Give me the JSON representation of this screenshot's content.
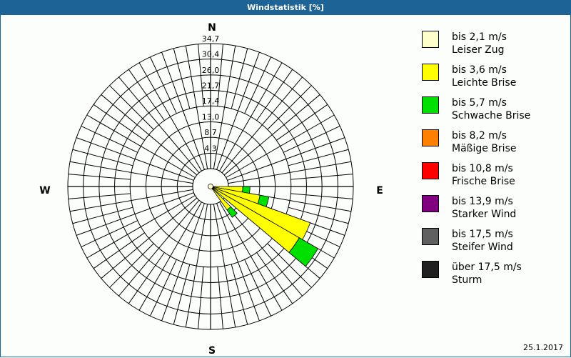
{
  "window": {
    "title": "Windstatistik [%]"
  },
  "footer": {
    "date": "25.1.2017"
  },
  "compass": {
    "north": "N",
    "south": "S",
    "west": "W",
    "east": "E"
  },
  "colors": {
    "titlebar": "#1d6396",
    "grid": "#000000"
  },
  "chart_data": {
    "type": "wind-rose",
    "title": "Windstatistik [%]",
    "unit": "%",
    "radial_ticks": [
      "4,3",
      "8,7",
      "13,0",
      "17,4",
      "21,7",
      "26,0",
      "30,4",
      "34,7"
    ],
    "radial_tick_values": [
      4.3,
      8.7,
      13.0,
      17.4,
      21.7,
      26.0,
      30.4,
      34.7
    ],
    "rmax": 34.7,
    "sector_width_deg": 10,
    "legend": [
      {
        "range": "bis 2,1 m/s",
        "name": "Leiser Zug",
        "color": "#ffffcc"
      },
      {
        "range": "bis 3,6 m/s",
        "name": "Leichte Brise",
        "color": "#ffff00"
      },
      {
        "range": "bis 5,7 m/s",
        "name": "Schwache Brise",
        "color": "#00e000"
      },
      {
        "range": "bis 8,2 m/s",
        "name": "Mäßige Brise",
        "color": "#ff8000"
      },
      {
        "range": "bis 10,8 m/s",
        "name": "Frische Brise",
        "color": "#ff0000"
      },
      {
        "range": "bis 13,9 m/s",
        "name": "Starker Wind",
        "color": "#800080"
      },
      {
        "range": "bis 17,5 m/s",
        "name": "Steifer Wind",
        "color": "#606060"
      },
      {
        "range": "über 17,5 m/s",
        "name": "Sturm",
        "color": "#202020"
      }
    ],
    "sectors": [
      {
        "direction_deg": 95,
        "series": {
          "bis 3,6 m/s": 4.0,
          "bis 5,7 m/s": 2.0
        }
      },
      {
        "direction_deg": 105,
        "series": {
          "bis 3,6 m/s": 9.0,
          "bis 5,7 m/s": 2.5
        }
      },
      {
        "direction_deg": 115,
        "series": {
          "bis 3,6 m/s": 24.5,
          "bis 5,7 m/s": 0
        }
      },
      {
        "direction_deg": 125,
        "series": {
          "bis 3,6 m/s": 23.5,
          "bis 5,7 m/s": 6.0
        }
      },
      {
        "direction_deg": 140,
        "series": {
          "bis 3,6 m/s": 3.0,
          "bis 5,7 m/s": 2.5
        }
      }
    ]
  }
}
